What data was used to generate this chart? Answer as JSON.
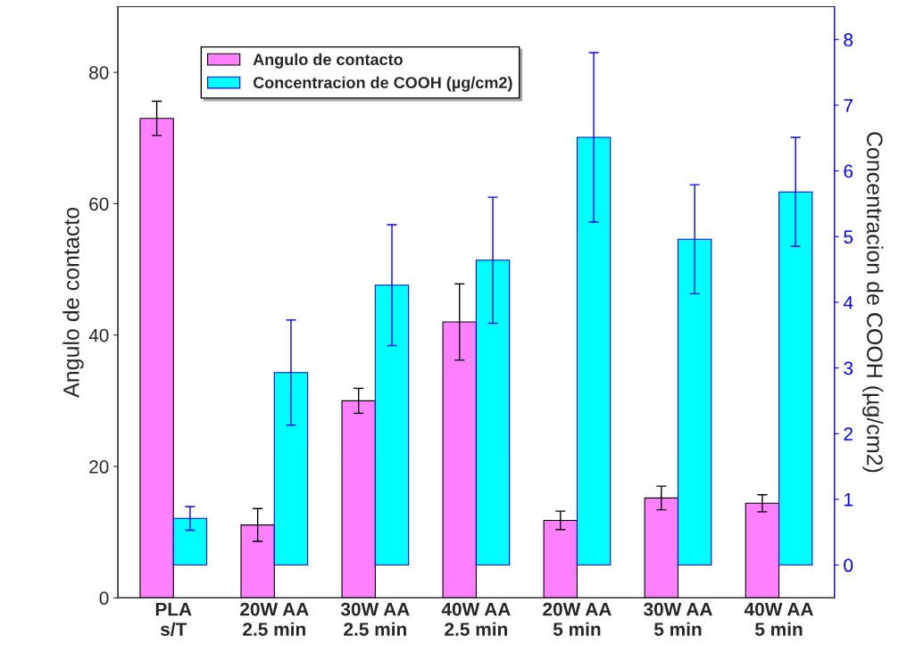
{
  "chart_data": {
    "type": "bar",
    "ylabel": "Angulo de contacto",
    "y2label": "Concentracion de COOH (µg/cm2)",
    "categories": [
      "PLA\ns/T",
      "20W AA\n2.5 min",
      "30W AA\n2.5 min",
      "40W AA\n2.5 min",
      "20W AA\n5 min",
      "30W AA\n5 min",
      "40W AA\n5 min"
    ],
    "series": [
      {
        "name": "Angulo de contacto",
        "color": "#ff80ff",
        "values": [
          73.0,
          11.1,
          30.0,
          42.0,
          11.8,
          15.2,
          14.4
        ],
        "errors": [
          2.6,
          2.5,
          1.9,
          5.8,
          1.4,
          1.8,
          1.3
        ]
      },
      {
        "name": "Concentracion de COOH (µg/cm2)",
        "color": "#00ffff",
        "axis": "y2",
        "values": [
          0.71,
          2.93,
          4.26,
          4.64,
          6.51,
          4.96,
          5.68
        ],
        "errors": [
          0.18,
          0.8,
          0.92,
          0.96,
          1.29,
          0.83,
          0.83
        ]
      }
    ],
    "ylim": [
      0,
      90
    ],
    "yticks": [
      0,
      20,
      40,
      60,
      80
    ],
    "y2lim": [
      -0.5,
      8.5
    ],
    "y2ticks": [
      0,
      1,
      2,
      3,
      4,
      5,
      6,
      7,
      8
    ],
    "grid": false,
    "legend": "top left"
  }
}
